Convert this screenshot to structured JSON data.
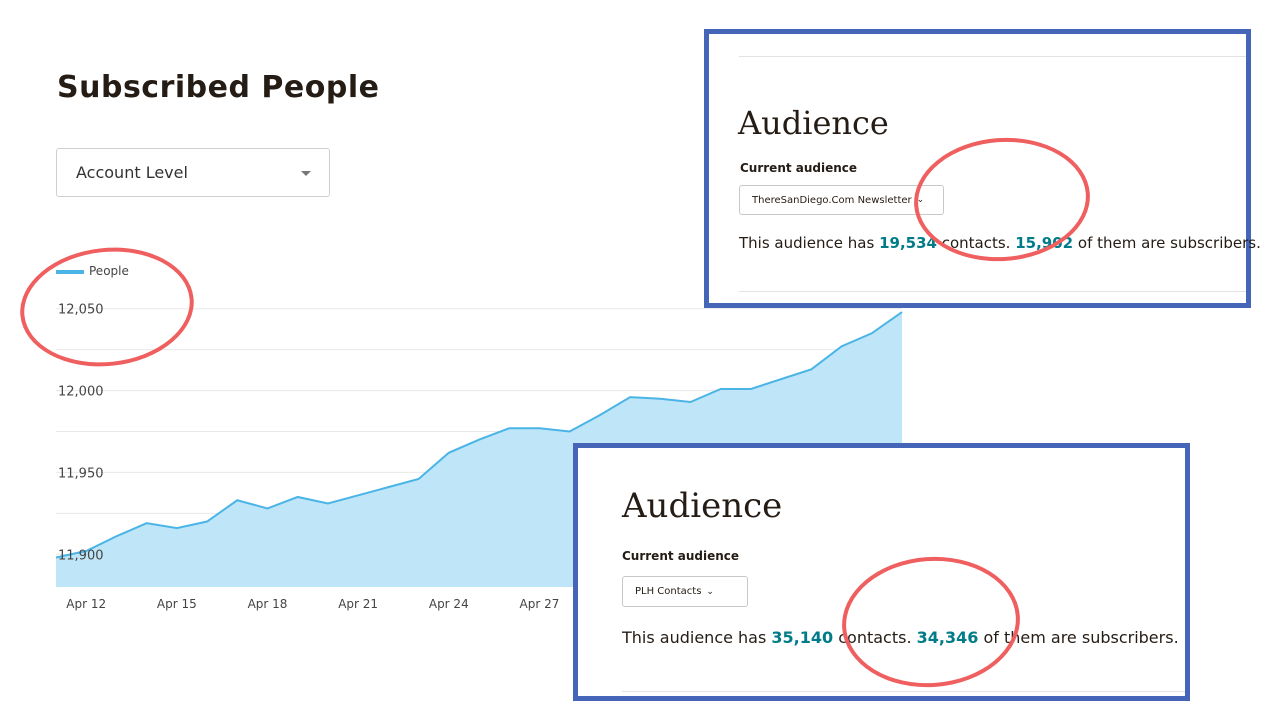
{
  "main": {
    "title": "Subscribed People",
    "level_select": {
      "value": "Account Level"
    }
  },
  "chart_data": {
    "type": "area",
    "series": [
      {
        "name": "People",
        "values": [
          11898,
          11902,
          11911,
          11919,
          11916,
          11920,
          11933,
          11928,
          11935,
          11931,
          11936,
          11941,
          11946,
          11962,
          11970,
          11977,
          11977,
          11975,
          11985,
          11996,
          11995,
          11993,
          12001,
          12001,
          12007,
          12013,
          12027,
          12035,
          12048
        ]
      }
    ],
    "x_tick_labels": [
      "Apr 12",
      "Apr 15",
      "Apr 18",
      "Apr 21",
      "Apr 24",
      "Apr 27"
    ],
    "y_tick_labels": [
      "12,050",
      "12,000",
      "11,950",
      "11,900"
    ],
    "ylim": [
      11880,
      12070
    ],
    "legend": "top-left",
    "color": "#4ab4e6"
  },
  "panel_top": {
    "heading": "Audience",
    "sub_label": "Current audience",
    "select_value": "ThereSanDiego.Com Newsletter",
    "summary": {
      "prefix": "This audience has ",
      "contacts": "19,534",
      "middle": " contacts. ",
      "subscribers": "15,902",
      "suffix": " of them are subscribers."
    }
  },
  "panel_bottom": {
    "heading": "Audience",
    "sub_label": "Current audience",
    "select_value": "PLH Contacts",
    "summary": {
      "prefix": "This audience has ",
      "contacts": "35,140",
      "middle": " contacts. ",
      "subscribers": "34,346",
      "suffix": " of them are subscribers."
    }
  },
  "icons": {
    "dropdown": "caret-down-icon",
    "chevron": "chevron-down-icon"
  },
  "colors": {
    "panel_border": "#4565b8",
    "annotation": "#ef5f5f",
    "link_number": "#007c89",
    "area_fill": "#bfe6f8"
  }
}
